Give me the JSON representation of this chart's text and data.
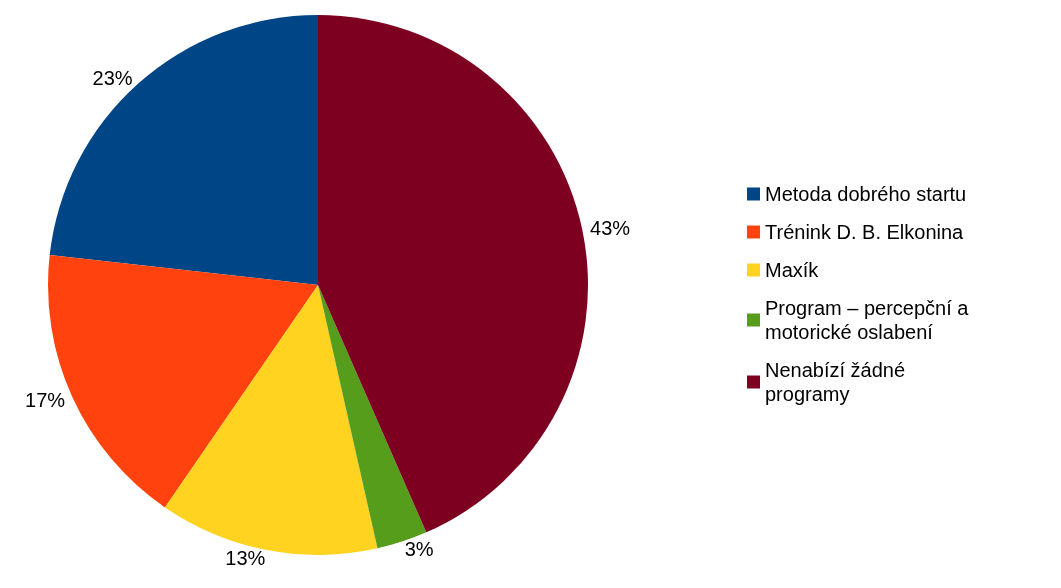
{
  "chart_data": {
    "type": "pie",
    "categories": [
      "Metoda dobrého startu",
      "Trénink D. B. Elkonina",
      "Maxík",
      "Program – percepční a motorické oslabení",
      "Nenabízí žádné programy"
    ],
    "values": [
      23,
      17,
      13,
      3,
      43
    ],
    "value_labels": [
      "23%",
      "17%",
      "13%",
      "3%",
      "43%"
    ],
    "colors": [
      "#004586",
      "#ff420e",
      "#ffd320",
      "#579d1c",
      "#7e0021"
    ],
    "legend": "right"
  }
}
